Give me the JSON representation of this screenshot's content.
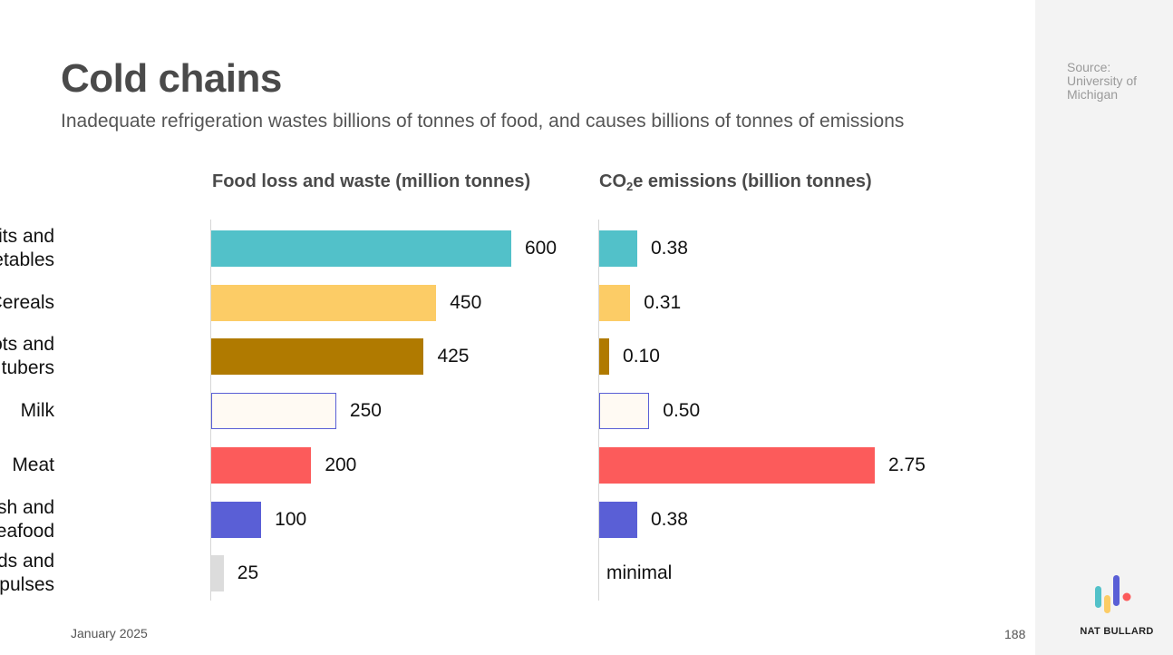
{
  "slide": {
    "title": "Cold chains",
    "subtitle": "Inadequate refrigeration wastes billions of tonnes of food, and causes billions of tonnes of emissions",
    "footer_date": "January 2025",
    "page_number": "188"
  },
  "sidebar": {
    "source": "Source: University of Michigan",
    "brand": "NAT BULLARD"
  },
  "colors": {
    "fruits": "#52c1c9",
    "cereals": "#fccc66",
    "roots": "#b07a00",
    "milk_fill": "#fffaf3",
    "milk_stroke": "#5a5fd6",
    "meat": "#fc5b5b",
    "fish": "#5a5fd6",
    "oilseeds": "#dcdcdc"
  },
  "chart_data": [
    {
      "type": "bar",
      "orientation": "horizontal",
      "title_text": "Food loss and waste (million tonnes)",
      "categories": [
        "Fruits and vegetables",
        "Cereals",
        "Roots and tubers",
        "Milk",
        "Meat",
        "Fish and seafood",
        "Oilseeds and pulses"
      ],
      "values": [
        600,
        450,
        425,
        250,
        200,
        100,
        25
      ],
      "labels": [
        "600",
        "450",
        "425",
        "250",
        "200",
        "100",
        "25"
      ],
      "xlim": [
        0,
        600
      ]
    },
    {
      "type": "bar",
      "orientation": "horizontal",
      "title_main": "CO",
      "title_sub": "2",
      "title_rest": "e emissions (billion tonnes)",
      "categories": [
        "Fruits and vegetables",
        "Cereals",
        "Roots and tubers",
        "Milk",
        "Meat",
        "Fish and seafood",
        "Oilseeds and pulses"
      ],
      "values": [
        0.38,
        0.31,
        0.1,
        0.5,
        2.75,
        0.38,
        0
      ],
      "labels": [
        "0.38",
        "0.31",
        "0.10",
        "0.50",
        "2.75",
        "0.38",
        "minimal"
      ],
      "xlim": [
        0,
        2.75
      ]
    }
  ],
  "category_lines": [
    [
      "Fruits and",
      "vegetables"
    ],
    [
      "Cereals"
    ],
    [
      "Roots and",
      "tubers"
    ],
    [
      "Milk"
    ],
    [
      "Meat"
    ],
    [
      "Fish and",
      "seafood"
    ],
    [
      "Oilseeds and",
      "pulses"
    ]
  ]
}
